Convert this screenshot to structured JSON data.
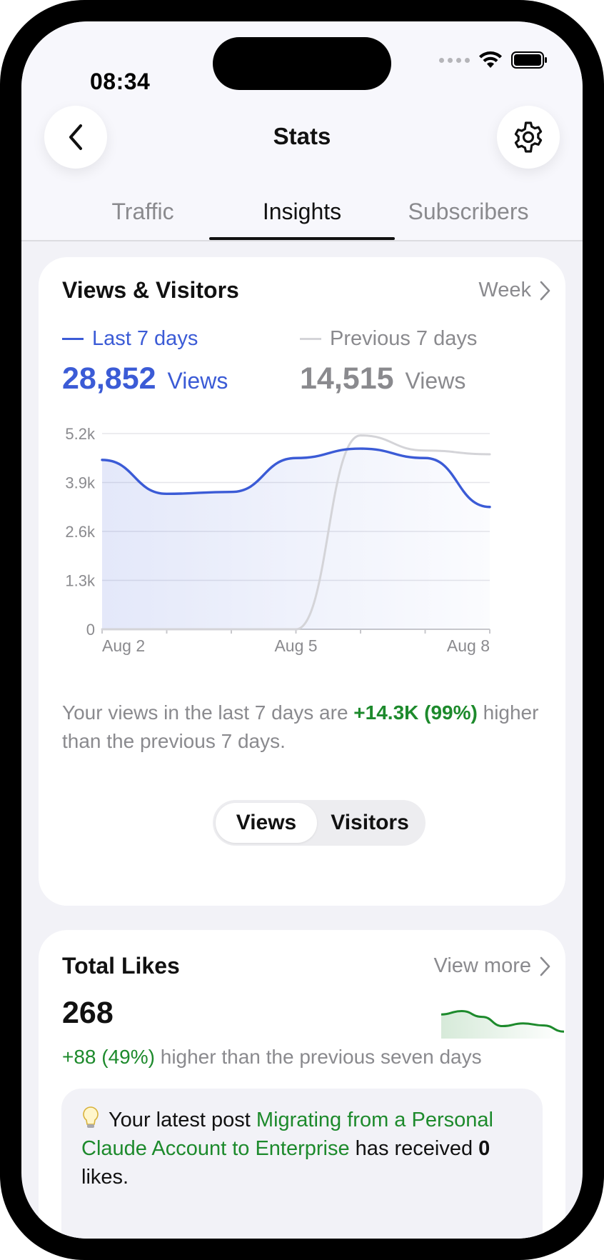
{
  "status_bar": {
    "time": "08:34"
  },
  "header": {
    "title": "Stats"
  },
  "tabs": [
    {
      "label": "Traffic",
      "active": false
    },
    {
      "label": "Insights",
      "active": true
    },
    {
      "label": "Subscribers",
      "active": false
    }
  ],
  "views_card": {
    "title": "Views & Visitors",
    "period_link": "Week",
    "current": {
      "legend": "Last 7 days",
      "value": "28,852",
      "unit": "Views"
    },
    "previous": {
      "legend": "Previous 7 days",
      "value": "14,515",
      "unit": "Views"
    },
    "summary_prefix": "Your views in the last 7 days are ",
    "summary_highlight": "+14.3K (99%)",
    "summary_suffix": " higher than the previous 7 days.",
    "toggle": [
      "Views",
      "Visitors"
    ],
    "toggle_selected": "Views"
  },
  "chart_data": {
    "type": "line",
    "x": [
      "Aug 2",
      "Aug 3",
      "Aug 4",
      "Aug 5",
      "Aug 6",
      "Aug 7",
      "Aug 8"
    ],
    "x_tick_labels": [
      "Aug 2",
      "Aug 5",
      "Aug 8"
    ],
    "y_tick_labels": [
      "5.2k",
      "3.9k",
      "2.6k",
      "1.3k",
      "0"
    ],
    "y_ticks": [
      5200,
      3900,
      2600,
      1300,
      0
    ],
    "ylim": [
      0,
      5200
    ],
    "grid": true,
    "series": [
      {
        "name": "Last 7 days",
        "color": "#3b5bd6",
        "values": [
          4500,
          3600,
          3650,
          4550,
          4800,
          4550,
          3250
        ]
      },
      {
        "name": "Previous 7 days",
        "color": "#d4d4d8",
        "values": [
          0,
          0,
          0,
          0,
          5150,
          4750,
          4650
        ]
      }
    ]
  },
  "likes_card": {
    "title": "Total Likes",
    "link": "View more",
    "value": "268",
    "delta": "+88 (49%)",
    "delta_suffix": " higher than the previous seven days",
    "sparkline_color": "#1d8a2c",
    "note_prefix": "Your latest post ",
    "note_link": "Migrating from a Personal Claude Account to Enterprise",
    "note_middle": " has received ",
    "note_count": "0",
    "note_suffix": " likes."
  },
  "likes_sparkline": [
    0.62,
    0.72,
    0.55,
    0.28,
    0.36,
    0.3,
    0.12
  ]
}
